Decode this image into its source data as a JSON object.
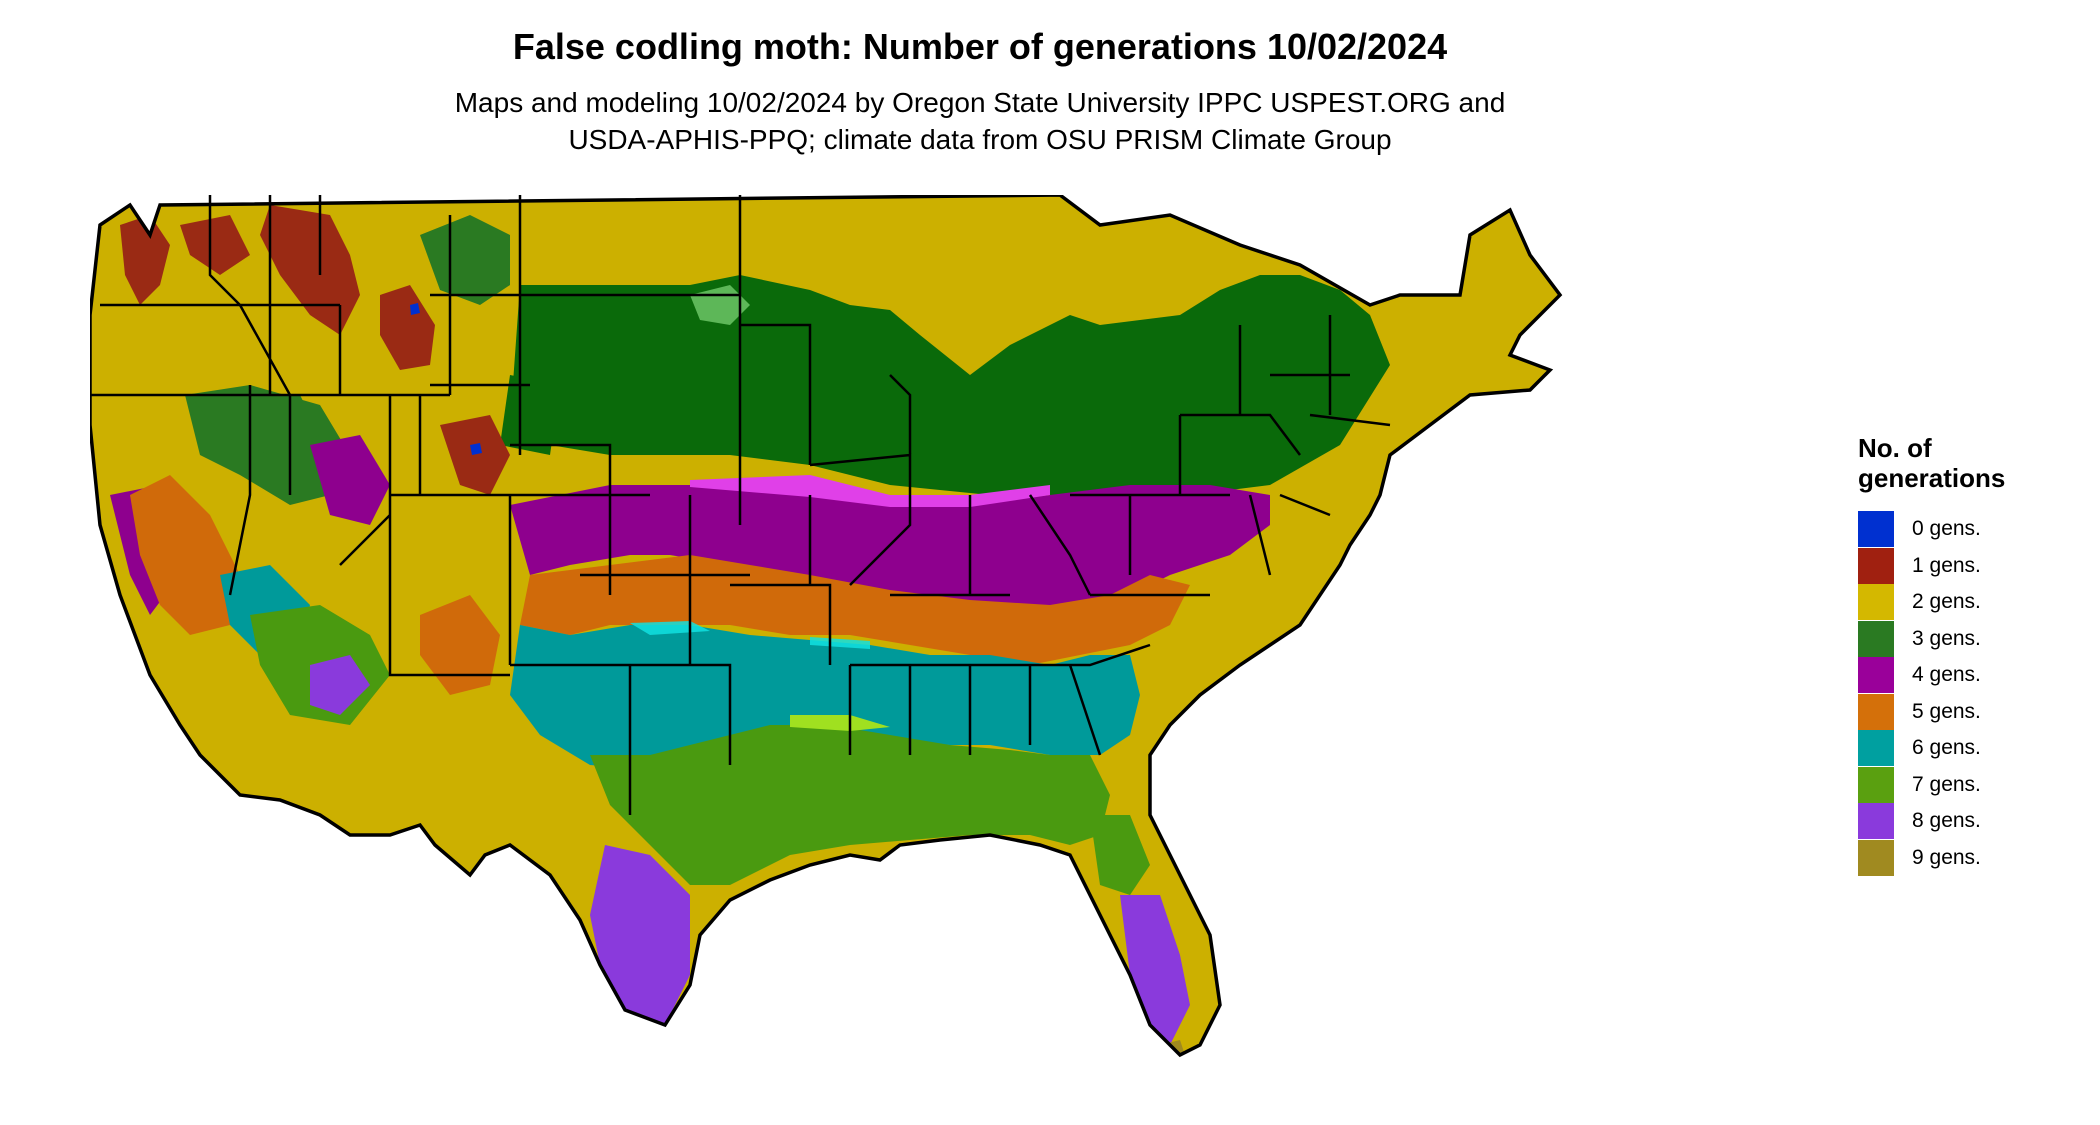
{
  "title": "False codling moth: Number of generations 10/02/2024",
  "subtitle_lines": [
    "Maps and modeling 10/02/2024 by Oregon State University IPPC USPEST.ORG and",
    "USDA-APHIS-PPQ; climate data from OSU PRISM Climate Group"
  ],
  "legend": {
    "title_lines": [
      "No. of",
      "generations"
    ],
    "items": [
      {
        "label": "0 gens.",
        "color": "#0030d0"
      },
      {
        "label": "1 gens.",
        "color": "#a02010"
      },
      {
        "label": "2 gens.",
        "color": "#d4b800"
      },
      {
        "label": "3 gens.",
        "color": "#2a7a22"
      },
      {
        "label": "4 gens.",
        "color": "#9a009a"
      },
      {
        "label": "5 gens.",
        "color": "#d4700a"
      },
      {
        "label": "6 gens.",
        "color": "#00a0a0"
      },
      {
        "label": "7 gens.",
        "color": "#5aa010"
      },
      {
        "label": "8 gens.",
        "color": "#8a3adc"
      },
      {
        "label": "9 gens.",
        "color": "#a08a20"
      }
    ]
  },
  "map_colors": {
    "one_gen": "#9a2a14",
    "two_gen": "#ccb000",
    "three_gen": "#0a6a0a",
    "three_gen_light": "#66c060",
    "four_gen": "#8e008e",
    "four_gen_light": "#e040e8",
    "five_gen": "#d06a0a",
    "six_gen": "#009a9a",
    "six_gen_light": "#10e0e0",
    "seven_gen": "#4a9a10",
    "seven_gen_light": "#a0e020",
    "eight_gen": "#8a3adc",
    "zero_gen": "#0030d0",
    "nine_gen": "#a08a20"
  }
}
